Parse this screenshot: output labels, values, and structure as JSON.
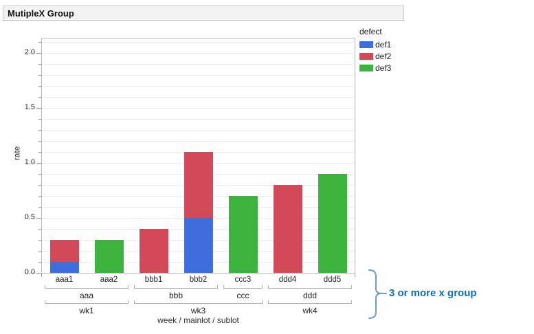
{
  "header": {
    "title": "MutipleX Group"
  },
  "legend": {
    "title": "defect",
    "items": [
      {
        "label": "def1",
        "color": "#3e6edc"
      },
      {
        "label": "def2",
        "color": "#d2495a"
      },
      {
        "label": "def3",
        "color": "#3cb33c"
      }
    ]
  },
  "annotation": {
    "text": "3 or more x group",
    "text_color": "#0a6ebd",
    "brace_color": "#6b9bd2"
  },
  "chart_data": {
    "type": "bar",
    "stacked": true,
    "title": "MutipleX Group",
    "ylabel": "rate",
    "xlabel": "week / mainlot / sublot",
    "ylim": [
      0,
      2.13
    ],
    "ytick_step_major": 0.5,
    "ytick_step_minor": 0.1,
    "ytick_labels": [
      "0.0",
      "0.5",
      "1.0",
      "1.5",
      "2.0"
    ],
    "grid": "horizontal-minor",
    "legend_position": "right",
    "categories": [
      "aaa1",
      "aaa2",
      "bbb1",
      "bbb2",
      "ccc3",
      "ddd4",
      "ddd5"
    ],
    "series": [
      {
        "name": "def1",
        "color": "#3e6edc",
        "values": [
          0.1,
          0,
          0,
          0.5,
          0,
          0,
          0
        ]
      },
      {
        "name": "def2",
        "color": "#d2495a",
        "values": [
          0.2,
          0,
          0.4,
          0.6,
          0,
          0.8,
          0
        ]
      },
      {
        "name": "def3",
        "color": "#3cb33c",
        "values": [
          0,
          0.3,
          0,
          0,
          0.7,
          0,
          0.9
        ]
      }
    ],
    "bar_totals": [
      0.3,
      0.3,
      0.4,
      1.1,
      0.7,
      0.8,
      0.9
    ],
    "group_levels": [
      {
        "name": "mainlot",
        "groups": [
          {
            "label": "aaa",
            "start": 0,
            "span": 2
          },
          {
            "label": "bbb",
            "start": 2,
            "span": 2
          },
          {
            "label": "ccc",
            "start": 4,
            "span": 1
          },
          {
            "label": "ddd",
            "start": 5,
            "span": 2
          }
        ]
      },
      {
        "name": "week",
        "groups": [
          {
            "label": "wk1",
            "start": 0,
            "span": 2
          },
          {
            "label": "wk3",
            "start": 2,
            "span": 3
          },
          {
            "label": "wk4",
            "start": 5,
            "span": 2
          }
        ]
      }
    ]
  }
}
